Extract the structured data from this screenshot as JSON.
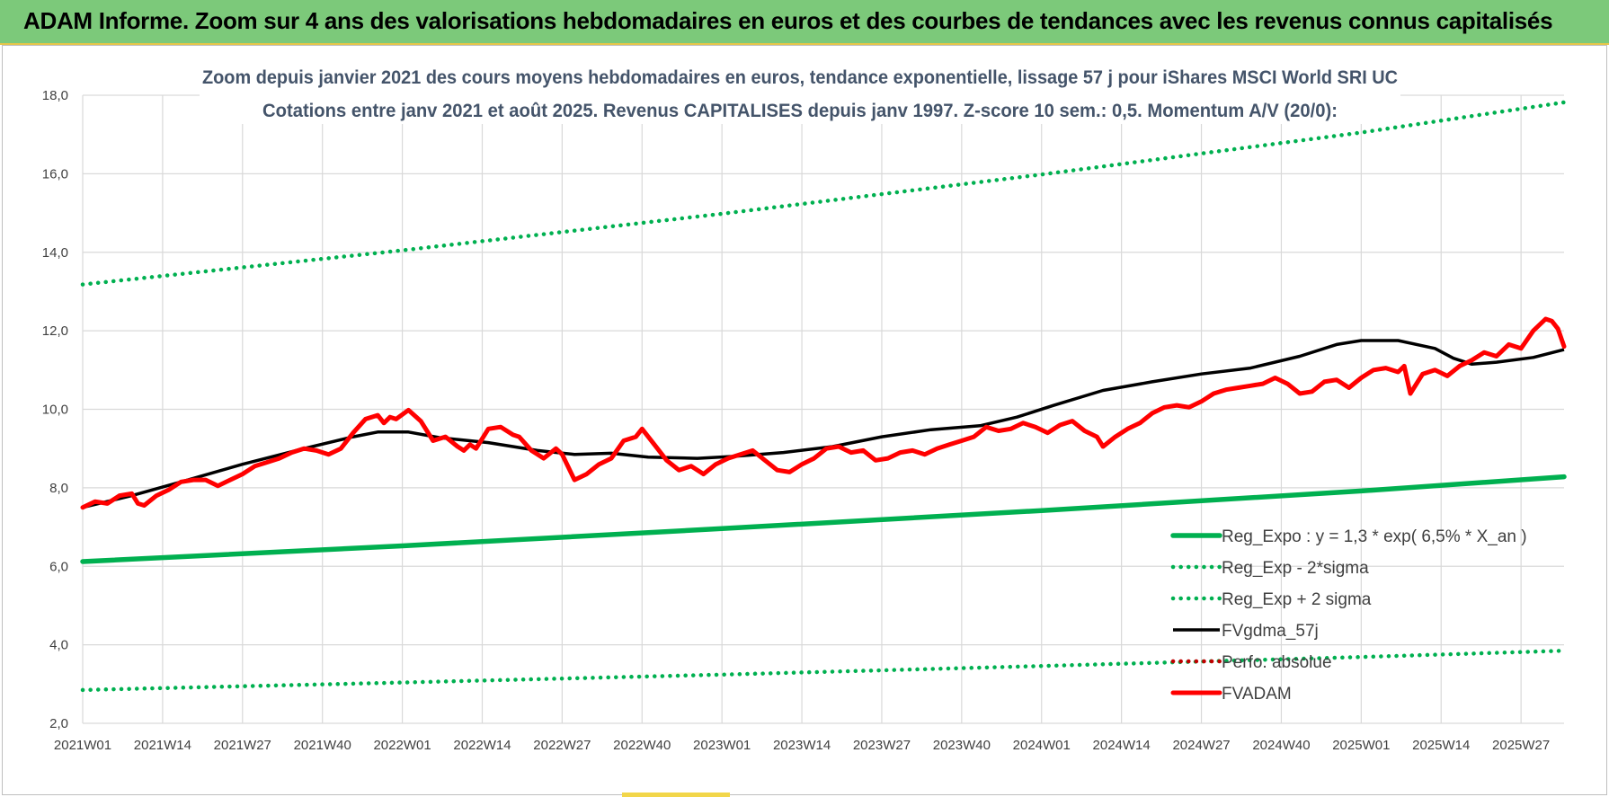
{
  "header": {
    "banner_title": "ADAM Informe. Zoom sur 4 ans des valorisations hebdomadaires en euros et des courbes de tendances avec les revenus connus capitalisés"
  },
  "colors": {
    "banner": "#7cc97a",
    "trend_green": "#00b050",
    "price_red": "#ff0000",
    "smooth_black": "#000000",
    "perf_red": "#c00000",
    "grid": "#d9d9d9",
    "title_text": "#44546a"
  },
  "chart_data": {
    "type": "line",
    "title_line1": "Zoom depuis janvier 2021 des cours moyens hebdomadaires en euros, tendance exponentielle, lissage 57 j pour iShares MSCI World SRI UC",
    "title_line2": "Cotations entre janv 2021 et août 2025. Revenus CAPITALISES depuis janv 1997. Z-score 10 sem.: 0,5. Momentum A/V (20/0):",
    "ylim": [
      2.0,
      18.0
    ],
    "y_ticks": [
      "2,0",
      "4,0",
      "6,0",
      "8,0",
      "10,0",
      "12,0",
      "14,0",
      "16,0",
      "18,0"
    ],
    "y_tick_values": [
      2,
      4,
      6,
      8,
      10,
      12,
      14,
      16,
      18
    ],
    "x_range_weeks": [
      0,
      241
    ],
    "x_ticks": [
      "2021W01",
      "2021W14",
      "2021W27",
      "2021W40",
      "2022W01",
      "2022W14",
      "2022W27",
      "2022W40",
      "2023W01",
      "2023W14",
      "2023W27",
      "2023W40",
      "2024W01",
      "2024W14",
      "2024W27",
      "2024W40",
      "2025W01",
      "2025W14",
      "2025W27"
    ],
    "x_tick_index": [
      0,
      13,
      26,
      39,
      52,
      65,
      78,
      91,
      104,
      117,
      130,
      143,
      156,
      169,
      182,
      195,
      208,
      221,
      234
    ],
    "series": [
      {
        "name": "Reg_Expo : y = 1,3 * exp( 6,5% *  X_an )",
        "style": "solid-thick",
        "color": "#00b050",
        "points": [
          [
            0,
            6.12
          ],
          [
            52,
            6.52
          ],
          [
            104,
            6.96
          ],
          [
            156,
            7.42
          ],
          [
            208,
            7.92
          ],
          [
            241,
            8.28
          ]
        ]
      },
      {
        "name": "Reg_Exp - 2*sigma",
        "style": "dotted",
        "color": "#00b050",
        "points": [
          [
            0,
            2.85
          ],
          [
            52,
            3.04
          ],
          [
            104,
            3.24
          ],
          [
            156,
            3.46
          ],
          [
            208,
            3.69
          ],
          [
            241,
            3.85
          ]
        ]
      },
      {
        "name": "Reg_Exp + 2 sigma",
        "style": "dotted",
        "color": "#00b050",
        "points": [
          [
            0,
            13.18
          ],
          [
            52,
            14.05
          ],
          [
            104,
            14.98
          ],
          [
            156,
            15.98
          ],
          [
            208,
            17.05
          ],
          [
            241,
            17.82
          ]
        ]
      },
      {
        "name": "FVgdma_57j",
        "style": "solid",
        "color": "#000000",
        "points": [
          [
            0,
            7.5
          ],
          [
            8,
            7.8
          ],
          [
            16,
            8.15
          ],
          [
            26,
            8.6
          ],
          [
            36,
            9.0
          ],
          [
            44,
            9.3
          ],
          [
            48,
            9.42
          ],
          [
            53,
            9.42
          ],
          [
            58,
            9.28
          ],
          [
            66,
            9.15
          ],
          [
            74,
            8.95
          ],
          [
            80,
            8.85
          ],
          [
            86,
            8.88
          ],
          [
            92,
            8.78
          ],
          [
            100,
            8.75
          ],
          [
            106,
            8.8
          ],
          [
            114,
            8.9
          ],
          [
            122,
            9.05
          ],
          [
            130,
            9.3
          ],
          [
            138,
            9.48
          ],
          [
            146,
            9.58
          ],
          [
            152,
            9.8
          ],
          [
            158,
            10.1
          ],
          [
            166,
            10.48
          ],
          [
            174,
            10.7
          ],
          [
            182,
            10.9
          ],
          [
            190,
            11.05
          ],
          [
            198,
            11.35
          ],
          [
            204,
            11.65
          ],
          [
            208,
            11.75
          ],
          [
            214,
            11.75
          ],
          [
            220,
            11.55
          ],
          [
            223,
            11.3
          ],
          [
            226,
            11.15
          ],
          [
            230,
            11.2
          ],
          [
            236,
            11.32
          ],
          [
            241,
            11.52
          ]
        ]
      },
      {
        "name": "Perfo. absolue",
        "style": "dotted",
        "color": "#c00000",
        "points": []
      },
      {
        "name": "FVADAM",
        "style": "solid-thick",
        "color": "#ff0000",
        "points": [
          [
            0,
            7.5
          ],
          [
            2,
            7.65
          ],
          [
            4,
            7.6
          ],
          [
            6,
            7.8
          ],
          [
            8,
            7.85
          ],
          [
            9,
            7.6
          ],
          [
            10,
            7.55
          ],
          [
            12,
            7.8
          ],
          [
            14,
            7.95
          ],
          [
            16,
            8.15
          ],
          [
            18,
            8.2
          ],
          [
            20,
            8.2
          ],
          [
            22,
            8.05
          ],
          [
            24,
            8.2
          ],
          [
            26,
            8.35
          ],
          [
            28,
            8.55
          ],
          [
            30,
            8.65
          ],
          [
            32,
            8.75
          ],
          [
            34,
            8.9
          ],
          [
            36,
            9.0
          ],
          [
            38,
            8.95
          ],
          [
            40,
            8.85
          ],
          [
            42,
            9.0
          ],
          [
            44,
            9.4
          ],
          [
            46,
            9.75
          ],
          [
            48,
            9.85
          ],
          [
            49,
            9.65
          ],
          [
            50,
            9.8
          ],
          [
            51,
            9.75
          ],
          [
            53,
            9.98
          ],
          [
            55,
            9.7
          ],
          [
            57,
            9.2
          ],
          [
            59,
            9.3
          ],
          [
            61,
            9.05
          ],
          [
            62,
            8.95
          ],
          [
            63,
            9.1
          ],
          [
            64,
            9.0
          ],
          [
            66,
            9.5
          ],
          [
            68,
            9.55
          ],
          [
            70,
            9.35
          ],
          [
            71,
            9.3
          ],
          [
            73,
            8.95
          ],
          [
            75,
            8.75
          ],
          [
            77,
            9.0
          ],
          [
            78,
            8.85
          ],
          [
            80,
            8.2
          ],
          [
            82,
            8.35
          ],
          [
            84,
            8.6
          ],
          [
            86,
            8.75
          ],
          [
            88,
            9.2
          ],
          [
            90,
            9.3
          ],
          [
            91,
            9.5
          ],
          [
            93,
            9.1
          ],
          [
            95,
            8.7
          ],
          [
            97,
            8.45
          ],
          [
            99,
            8.55
          ],
          [
            101,
            8.35
          ],
          [
            103,
            8.6
          ],
          [
            105,
            8.75
          ],
          [
            107,
            8.85
          ],
          [
            109,
            8.95
          ],
          [
            111,
            8.7
          ],
          [
            113,
            8.45
          ],
          [
            115,
            8.4
          ],
          [
            117,
            8.6
          ],
          [
            119,
            8.75
          ],
          [
            121,
            9.0
          ],
          [
            123,
            9.05
          ],
          [
            125,
            8.9
          ],
          [
            127,
            8.95
          ],
          [
            129,
            8.7
          ],
          [
            131,
            8.75
          ],
          [
            133,
            8.9
          ],
          [
            135,
            8.95
          ],
          [
            137,
            8.85
          ],
          [
            139,
            9.0
          ],
          [
            141,
            9.1
          ],
          [
            143,
            9.2
          ],
          [
            145,
            9.3
          ],
          [
            147,
            9.55
          ],
          [
            149,
            9.45
          ],
          [
            151,
            9.5
          ],
          [
            153,
            9.65
          ],
          [
            155,
            9.55
          ],
          [
            157,
            9.4
          ],
          [
            159,
            9.6
          ],
          [
            161,
            9.7
          ],
          [
            163,
            9.45
          ],
          [
            165,
            9.3
          ],
          [
            166,
            9.05
          ],
          [
            168,
            9.3
          ],
          [
            170,
            9.5
          ],
          [
            172,
            9.65
          ],
          [
            174,
            9.9
          ],
          [
            176,
            10.05
          ],
          [
            178,
            10.1
          ],
          [
            180,
            10.05
          ],
          [
            182,
            10.2
          ],
          [
            184,
            10.4
          ],
          [
            186,
            10.5
          ],
          [
            188,
            10.55
          ],
          [
            190,
            10.6
          ],
          [
            192,
            10.65
          ],
          [
            194,
            10.8
          ],
          [
            196,
            10.65
          ],
          [
            198,
            10.4
          ],
          [
            200,
            10.45
          ],
          [
            202,
            10.7
          ],
          [
            204,
            10.75
          ],
          [
            206,
            10.55
          ],
          [
            208,
            10.8
          ],
          [
            210,
            11.0
          ],
          [
            212,
            11.05
          ],
          [
            214,
            10.95
          ],
          [
            215,
            11.1
          ],
          [
            216,
            10.4
          ],
          [
            218,
            10.9
          ],
          [
            220,
            11.0
          ],
          [
            222,
            10.85
          ],
          [
            224,
            11.1
          ],
          [
            226,
            11.25
          ],
          [
            228,
            11.45
          ],
          [
            230,
            11.35
          ],
          [
            232,
            11.65
          ],
          [
            234,
            11.55
          ],
          [
            236,
            12.0
          ],
          [
            238,
            12.3
          ],
          [
            239,
            12.25
          ],
          [
            240,
            12.05
          ],
          [
            241,
            11.6
          ]
        ]
      }
    ],
    "legend_position": "bottom-right",
    "grid": true
  }
}
